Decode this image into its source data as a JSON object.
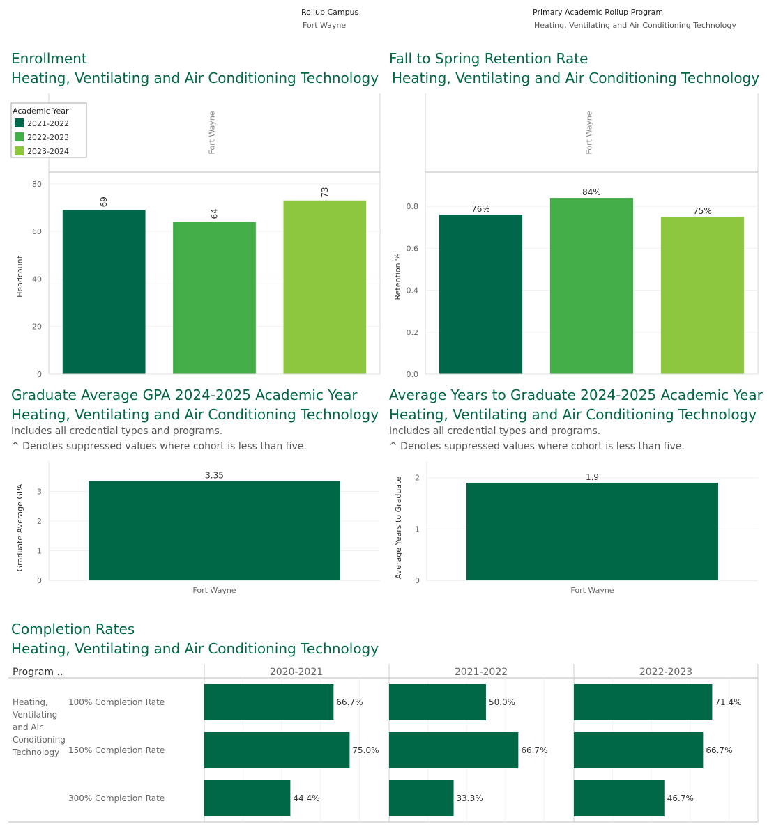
{
  "filters": {
    "campus": {
      "label": "Rollup Campus",
      "value": "Fort Wayne"
    },
    "program": {
      "label": "Primary Academic Rollup Program",
      "value": "Heating, Ventilating and Air Conditioning Technology"
    }
  },
  "program_name": "Heating, Ventilating and Air Conditioning Technology",
  "colors": {
    "brand": "#006747",
    "y2021": "#00674A",
    "y2022": "#43AE47",
    "y2023": "#8DC63F"
  },
  "sections": {
    "enrollment": {
      "title": "Enrollment"
    },
    "retention": {
      "title": "Fall to Spring Retention Rate"
    },
    "gpa": {
      "title": "Graduate Average GPA 2024-2025 Academic Year",
      "note1": "Includes all credential types and programs.",
      "note2": "^ Denotes suppressed values where cohort is less than five."
    },
    "years": {
      "title": "Average Years to Graduate 2024-2025 Academic Year",
      "note1": "Includes all credential types and programs.",
      "note2": "^ Denotes suppressed values where cohort is less than five."
    },
    "completion": {
      "title": "Completion Rates"
    }
  },
  "chart_data": [
    {
      "id": "enrollment",
      "type": "bar",
      "facet_label": "Fort Wayne",
      "legend_title": "Academic Year",
      "categories": [
        "2021-2022",
        "2022-2023",
        "2023-2024"
      ],
      "values": [
        69,
        64,
        73
      ],
      "data_labels": [
        "69",
        "64",
        "73"
      ],
      "ylabel": "Headcount",
      "ylim": [
        0,
        82
      ],
      "yticks": [
        0,
        20,
        40,
        60,
        80
      ],
      "ytick_labels": [
        "0",
        "20",
        "40",
        "60",
        "80"
      ],
      "legend_position": "top-left"
    },
    {
      "id": "retention",
      "type": "bar",
      "facet_label": "Fort Wayne",
      "categories": [
        "2021-2022",
        "2022-2023",
        "2023-2024"
      ],
      "values": [
        0.76,
        0.84,
        0.75
      ],
      "data_labels": [
        "76%",
        "84%",
        "75%"
      ],
      "ylabel": "Retention %",
      "ylim": [
        0,
        0.93
      ],
      "yticks": [
        0,
        0.2,
        0.4,
        0.6,
        0.8
      ],
      "ytick_labels": [
        "0.0",
        "0.2",
        "0.4",
        "0.6",
        "0.8"
      ]
    },
    {
      "id": "gpa",
      "type": "bar",
      "categories": [
        "Fort Wayne"
      ],
      "values": [
        3.35
      ],
      "data_labels": [
        "3.35"
      ],
      "ylabel": "Graduate Average GPA",
      "ylim": [
        0,
        3.55
      ],
      "yticks": [
        0,
        1,
        2,
        3
      ],
      "ytick_labels": [
        "0",
        "1",
        "2",
        "3"
      ]
    },
    {
      "id": "years",
      "type": "bar",
      "categories": [
        "Fort Wayne"
      ],
      "values": [
        1.9
      ],
      "data_labels": [
        "1.9"
      ],
      "ylabel": "Average Years to Graduate",
      "ylim": [
        0,
        2.05
      ],
      "yticks": [
        0,
        1,
        2
      ],
      "ytick_labels": [
        "0",
        "1",
        "2"
      ]
    },
    {
      "id": "completion",
      "type": "bar",
      "orientation": "horizontal",
      "row_header": "Program ..",
      "program": "Heating, Ventilating and Air Conditioning Technology",
      "columns": [
        "2020-2021",
        "2021-2022",
        "2022-2023"
      ],
      "rows": [
        "100% Completion Rate",
        "150% Completion Rate",
        "300% Completion Rate"
      ],
      "values": [
        [
          0.667,
          0.75,
          0.444
        ],
        [
          0.5,
          0.667,
          0.333
        ],
        [
          0.714,
          0.667,
          0.467
        ]
      ],
      "data_labels": [
        [
          "66.7%",
          "75.0%",
          "44.4%"
        ],
        [
          "50.0%",
          "66.7%",
          "33.3%"
        ],
        [
          "71.4%",
          "66.7%",
          "46.7%"
        ]
      ],
      "xlim": [
        0,
        0.95
      ]
    }
  ]
}
